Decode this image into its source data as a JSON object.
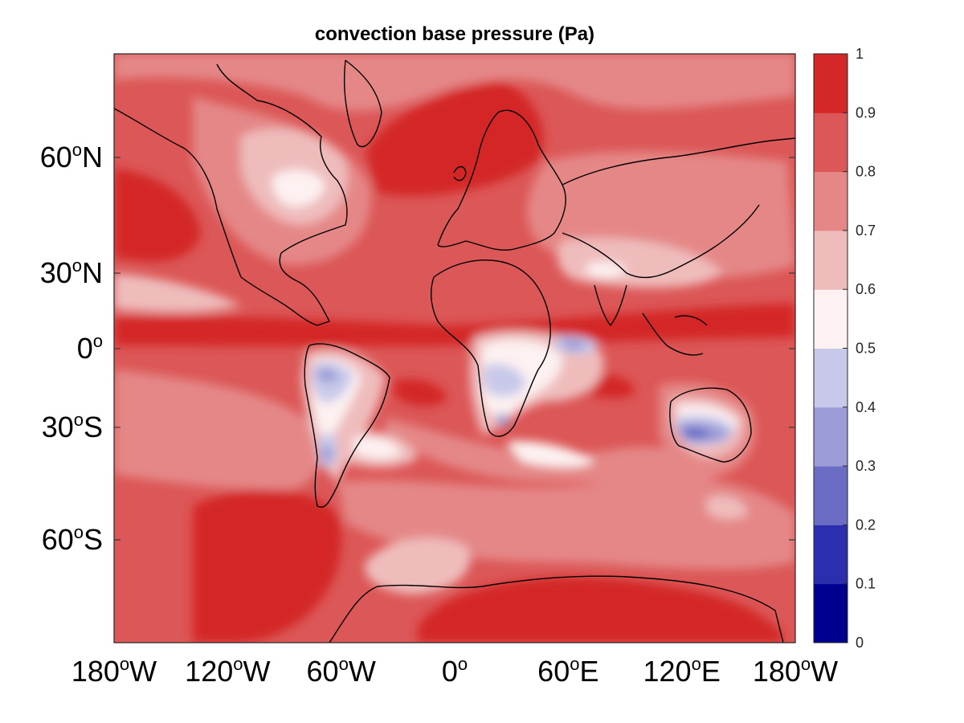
{
  "title": "convection base pressure (Pa)",
  "axes": {
    "y_ticks": [
      {
        "label": "60",
        "deg": "o",
        "hemi": "N",
        "value": 60
      },
      {
        "label": "30",
        "deg": "o",
        "hemi": "N",
        "value": 30
      },
      {
        "label": "0",
        "deg": "o",
        "hemi": "",
        "value": 0
      },
      {
        "label": "30",
        "deg": "o",
        "hemi": "S",
        "value": -30
      },
      {
        "label": "60",
        "deg": "o",
        "hemi": "S",
        "value": -60
      }
    ],
    "x_ticks": [
      {
        "label": "180",
        "deg": "o",
        "hemi": "W",
        "value": -180
      },
      {
        "label": "120",
        "deg": "o",
        "hemi": "W",
        "value": -120
      },
      {
        "label": "60",
        "deg": "o",
        "hemi": "W",
        "value": -60
      },
      {
        "label": "0",
        "deg": "o",
        "hemi": "",
        "value": 0
      },
      {
        "label": "60",
        "deg": "o",
        "hemi": "E",
        "value": 60
      },
      {
        "label": "120",
        "deg": "o",
        "hemi": "E",
        "value": 120
      },
      {
        "label": "180",
        "deg": "o",
        "hemi": "W",
        "value": 180
      }
    ]
  },
  "colorbar": {
    "levels": [
      "0",
      "0.1",
      "0.2",
      "0.3",
      "0.4",
      "0.5",
      "0.6",
      "0.7",
      "0.8",
      "0.9",
      "1"
    ],
    "colors": [
      "#00008f",
      "#2b2fae",
      "#6b6cc4",
      "#9c9dd8",
      "#c8c9ea",
      "#fdf1f1",
      "#efbcbc",
      "#e58787",
      "#dc5757",
      "#d42828"
    ]
  },
  "colors": {
    "deep_red": "#d42828",
    "red": "#dc5757",
    "mid_red": "#e58787",
    "light_red": "#efbcbc",
    "white": "#fdf1f1",
    "light_blue": "#c8c9ea",
    "blue": "#9c9dd8",
    "dark_blue": "#6b6cc4",
    "coast": "#000000"
  }
}
